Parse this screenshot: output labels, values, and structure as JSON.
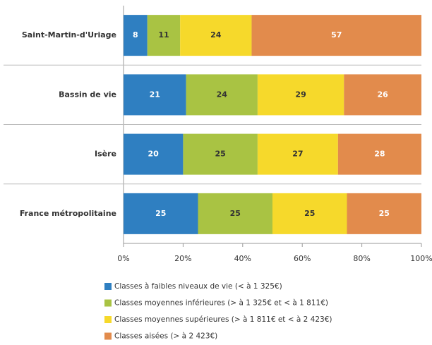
{
  "chart_data": {
    "type": "bar",
    "orientation": "horizontal",
    "stacked": true,
    "categories": [
      "Saint-Martin-d'Uriage",
      "Bassin de vie",
      "Isère",
      "France métropolitaine"
    ],
    "series": [
      {
        "name": "Classes à faibles niveaux de vie (< à 1 325€)",
        "color": "#2f7fc1",
        "values": [
          8,
          21,
          20,
          25
        ]
      },
      {
        "name": "Classes moyennes inférieures (> à 1 325€ et < à 1 811€)",
        "color": "#a9c343",
        "values": [
          11,
          24,
          25,
          25
        ]
      },
      {
        "name": "Classes moyennes supérieures (> à 1 811€ et < à 2 423€)",
        "color": "#f6d92b",
        "values": [
          24,
          29,
          27,
          25
        ]
      },
      {
        "name": "Classes aisées (> à 2 423€)",
        "color": "#e28b4c",
        "values": [
          57,
          26,
          28,
          25
        ]
      }
    ],
    "xlim": [
      0,
      100
    ],
    "xticks": [
      {
        "value": 0,
        "label": "0%"
      },
      {
        "value": 20,
        "label": "20%"
      },
      {
        "value": 40,
        "label": "40%"
      },
      {
        "value": 60,
        "label": "60%"
      },
      {
        "value": 80,
        "label": "80%"
      },
      {
        "value": 100,
        "label": "100%"
      }
    ],
    "grid": false
  }
}
